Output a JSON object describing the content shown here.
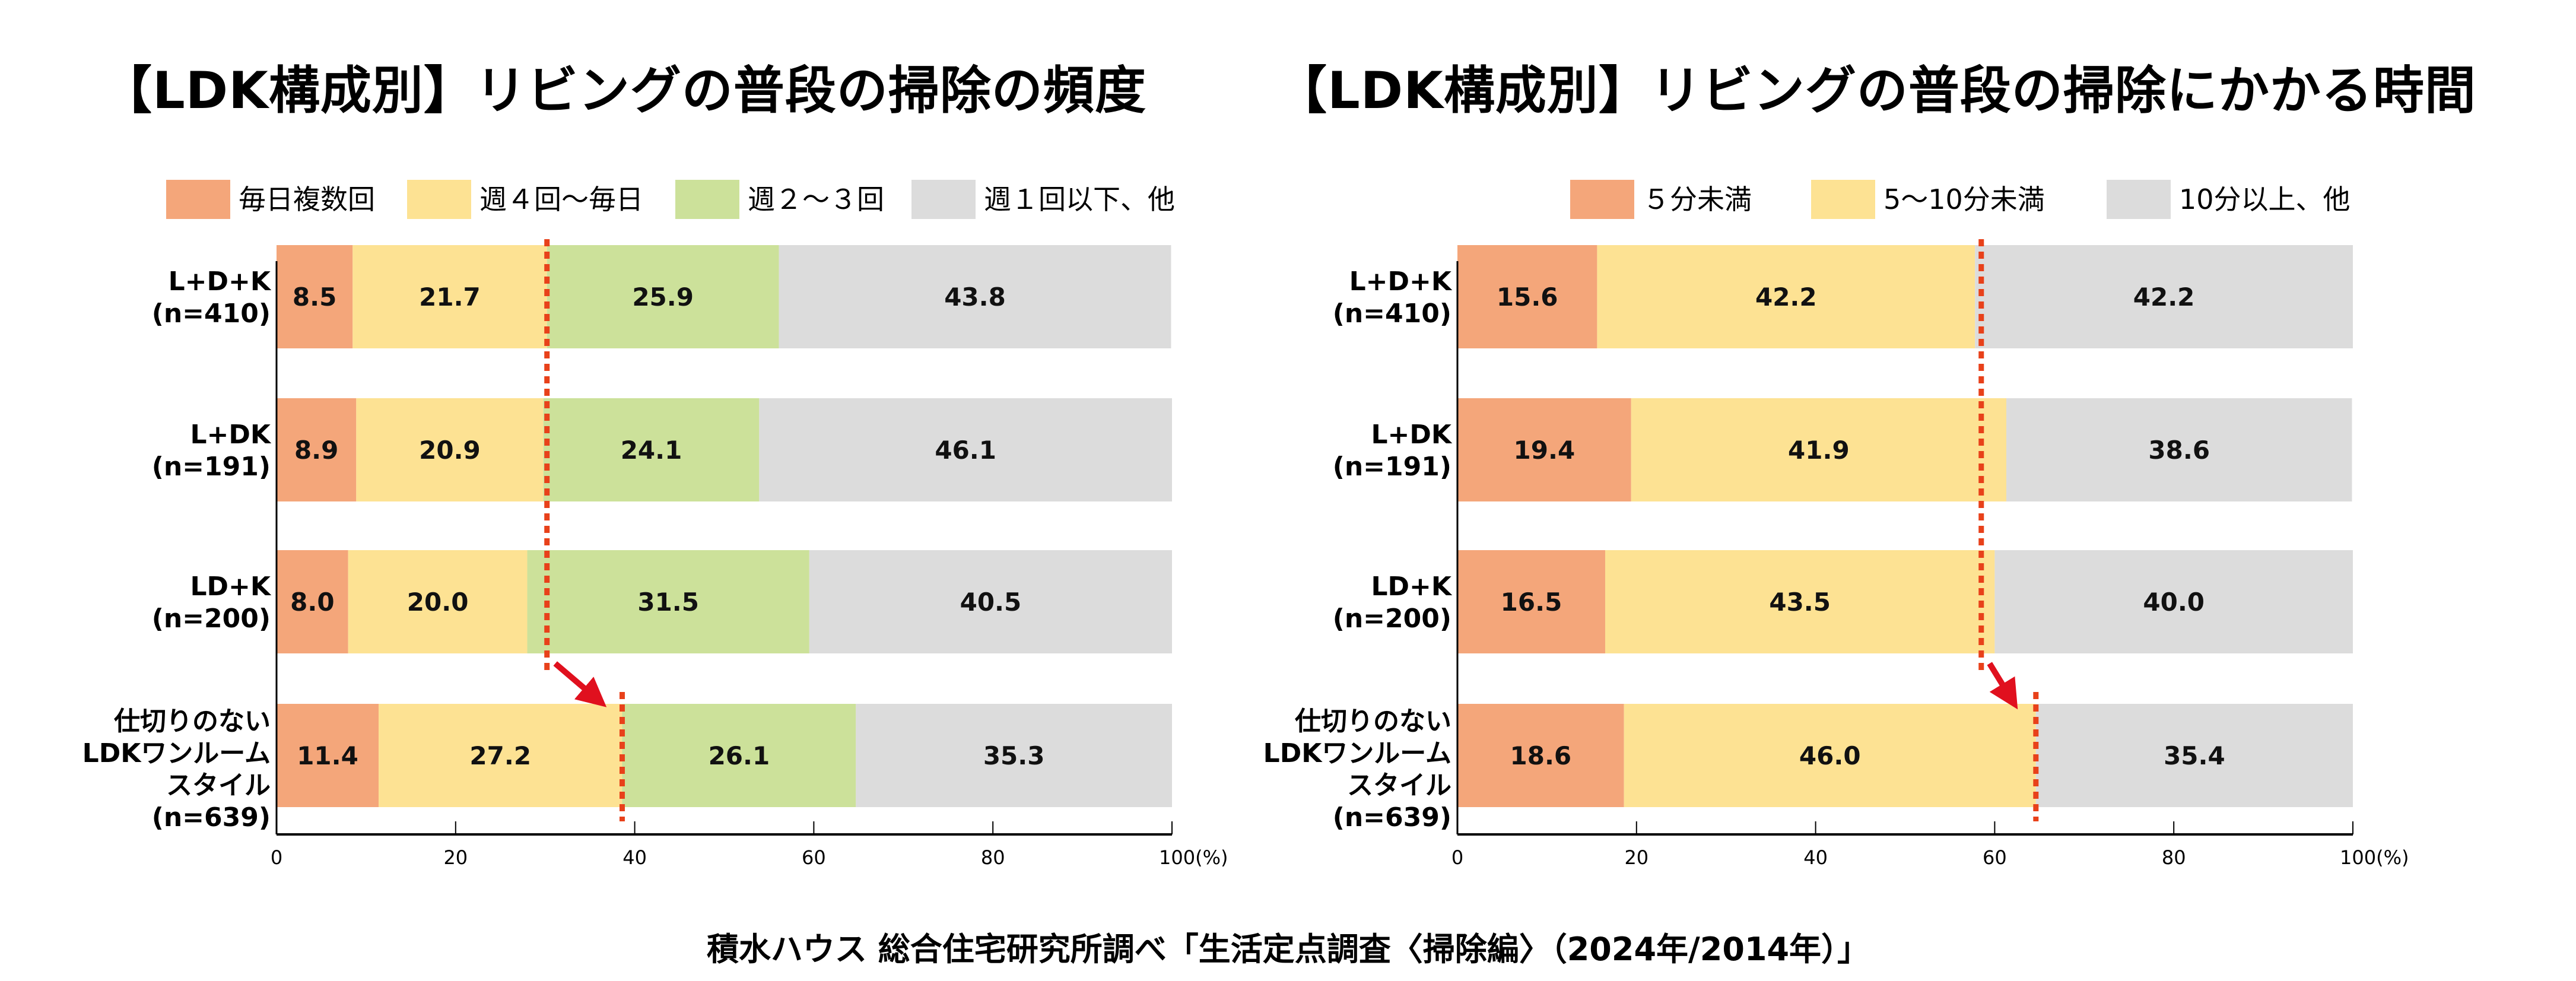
{
  "footer": "積水ハウス 総合住宅研究所調べ「生活定点調査〈掃除編〉（2024年/2014年）」",
  "colors": {
    "orange": "#F4A67A",
    "yellow": "#FDE293",
    "green": "#CCE19A",
    "gray": "#DCDCDC",
    "dotted_line": "#E8411A",
    "arrow": "#E0101E",
    "axis": "#000000"
  },
  "chart_data": [
    {
      "type": "bar",
      "orientation": "horizontal",
      "stacked": true,
      "title": "【LDK構成別】リビングの普段の掃除の頻度",
      "categories": [
        {
          "label_lines": [
            "L+D+K",
            "(n=410)"
          ]
        },
        {
          "label_lines": [
            "L+DK",
            "(n=191)"
          ]
        },
        {
          "label_lines": [
            "LD+K",
            "(n=200)"
          ]
        },
        {
          "label_lines": [
            "仕切りのない",
            "LDKワンルーム",
            "スタイル",
            "(n=639)"
          ]
        }
      ],
      "series": [
        {
          "name": "毎日複数回",
          "color": "#F4A67A",
          "values": [
            8.5,
            8.9,
            8.0,
            11.4
          ]
        },
        {
          "name": "週４回～毎日",
          "color": "#FDE293",
          "values": [
            21.7,
            20.9,
            20.0,
            27.2
          ]
        },
        {
          "name": "週２～３回",
          "color": "#CCE19A",
          "values": [
            25.9,
            24.1,
            31.5,
            26.1
          ]
        },
        {
          "name": "週１回以下、他",
          "color": "#DCDCDC",
          "values": [
            43.8,
            46.1,
            40.5,
            35.3
          ]
        }
      ],
      "xlim": [
        0,
        100
      ],
      "xticks": [
        0,
        20,
        40,
        60,
        80,
        100
      ],
      "xtick_labels": [
        "0",
        "20",
        "40",
        "60",
        "80",
        "100(%)"
      ],
      "xlabel": "",
      "ylabel": "",
      "legend": "top",
      "grid": false,
      "annotations": {
        "reference_line_from": 30.2,
        "reference_line_to": 38.6,
        "arrow": "from first-three-rows cumulative line to the open-plan row cumulative line"
      }
    },
    {
      "type": "bar",
      "orientation": "horizontal",
      "stacked": true,
      "title": "【LDK構成別】リビングの普段の掃除にかかる時間",
      "categories": [
        {
          "label_lines": [
            "L+D+K",
            "(n=410)"
          ]
        },
        {
          "label_lines": [
            "L+DK",
            "(n=191)"
          ]
        },
        {
          "label_lines": [
            "LD+K",
            "(n=200)"
          ]
        },
        {
          "label_lines": [
            "仕切りのない",
            "LDKワンルーム",
            "スタイル",
            "(n=639)"
          ]
        }
      ],
      "series": [
        {
          "name": "５分未満",
          "color": "#F4A67A",
          "values": [
            15.6,
            19.4,
            16.5,
            18.6
          ]
        },
        {
          "name": "5～10分未満",
          "color": "#FDE293",
          "values": [
            42.2,
            41.9,
            43.5,
            46.0
          ]
        },
        {
          "name": "10分以上、他",
          "color": "#DCDCDC",
          "values": [
            42.2,
            38.6,
            40.0,
            35.4
          ]
        }
      ],
      "xlim": [
        0,
        100
      ],
      "xticks": [
        0,
        20,
        40,
        60,
        80,
        100
      ],
      "xtick_labels": [
        "0",
        "20",
        "40",
        "60",
        "80",
        "100(%)"
      ],
      "xlabel": "",
      "ylabel": "",
      "legend": "top",
      "grid": false,
      "annotations": {
        "reference_line_from": 58.5,
        "reference_line_to": 64.6,
        "arrow": "from first-three-rows cumulative line to the open-plan row cumulative line"
      }
    }
  ]
}
